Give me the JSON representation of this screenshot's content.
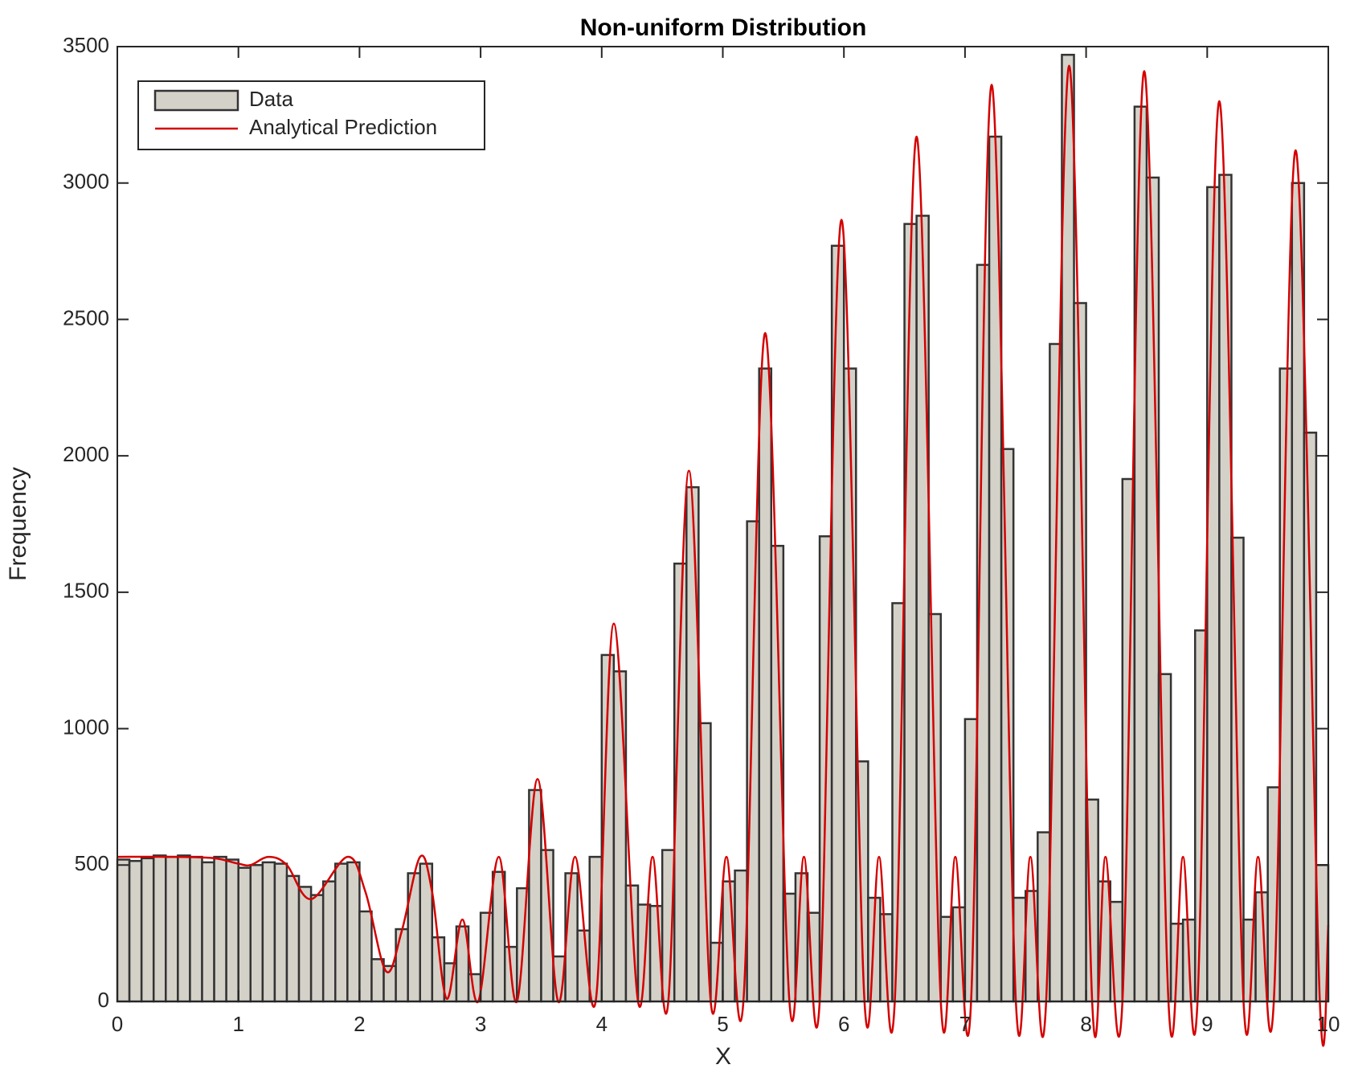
{
  "chart_data": {
    "type": "histogram",
    "title": "Non-uniform Distribution",
    "xlabel": "X",
    "ylabel": "Frequency",
    "xlim": [
      0,
      10
    ],
    "ylim": [
      0,
      3500
    ],
    "xticks": [
      0,
      1,
      2,
      3,
      4,
      5,
      6,
      7,
      8,
      9,
      10
    ],
    "yticks": [
      0,
      500,
      1000,
      1500,
      2000,
      2500,
      3000,
      3500
    ],
    "legend": "upper left",
    "bins": [
      0,
      0.1,
      0.2,
      0.3,
      0.4,
      0.5,
      0.6,
      0.7,
      0.8,
      0.9,
      1,
      1.1,
      1.2,
      1.3,
      1.4,
      1.5,
      1.6,
      1.7,
      1.8,
      1.9,
      2,
      2.1,
      2.2,
      2.3,
      2.4,
      2.5,
      2.6,
      2.7,
      2.8,
      2.9,
      3,
      3.1,
      3.2,
      3.3,
      3.4,
      3.5,
      3.6,
      3.7,
      3.8,
      3.9,
      4,
      4.1,
      4.2,
      4.3,
      4.4,
      4.5,
      4.6,
      4.7,
      4.8,
      4.9,
      5,
      5.1,
      5.2,
      5.3,
      5.4,
      5.5,
      5.6,
      5.7,
      5.8,
      5.9,
      6,
      6.1,
      6.2,
      6.3,
      6.4,
      6.5,
      6.6,
      6.7,
      6.8,
      6.9,
      7,
      7.1,
      7.2,
      7.3,
      7.4,
      7.5,
      7.6,
      7.7,
      7.8,
      7.9,
      8,
      8.1,
      8.2,
      8.3,
      8.4,
      8.5,
      8.6,
      8.7,
      8.8,
      8.9,
      9,
      9.1,
      9.2,
      9.3,
      9.4,
      9.5,
      9.6,
      9.7,
      9.8,
      9.9,
      10
    ],
    "series": [
      {
        "name": "Data",
        "color": "#d4d1c9",
        "edgecolor": "#333333",
        "values": [
          520,
          515,
          525,
          535,
          530,
          535,
          530,
          510,
          530,
          520,
          490,
          500,
          510,
          505,
          460,
          420,
          390,
          440,
          505,
          510,
          330,
          155,
          130,
          265,
          470,
          505,
          235,
          140,
          275,
          100,
          325,
          475,
          200,
          415,
          775,
          555,
          165,
          470,
          260,
          530,
          1270,
          1210,
          425,
          355,
          350,
          555,
          1605,
          1885,
          1020,
          215,
          440,
          480,
          1760,
          2320,
          1670,
          395,
          470,
          325,
          1705,
          2770,
          2320,
          880,
          380,
          320,
          1460,
          2850,
          2880,
          1420,
          310,
          345,
          1035,
          2700,
          3170,
          2025,
          380,
          405,
          620,
          2410,
          3470,
          2560,
          740,
          440,
          365,
          1915,
          3280,
          3020,
          1200,
          285,
          300,
          1360,
          2985,
          3030,
          1700,
          300,
          400,
          785,
          2320,
          3000,
          2085,
          500
        ]
      }
    ],
    "lines": [
      {
        "name": "Analytical Prediction",
        "color": "#d40000",
        "x": [
          0,
          0.5,
          0.8,
          1.0,
          1.1,
          1.25,
          1.4,
          1.6,
          1.9,
          2.05,
          2.22,
          2.35,
          2.5,
          2.6,
          2.72,
          2.85,
          2.98,
          3.15,
          3.3,
          3.47,
          3.64,
          3.78,
          3.95,
          4.1,
          4.3,
          4.42,
          4.55,
          4.72,
          4.9,
          5.03,
          5.17,
          5.35,
          5.55,
          5.67,
          5.8,
          5.98,
          6.17,
          6.29,
          6.42,
          6.6,
          6.8,
          6.92,
          7.05,
          7.22,
          7.42,
          7.54,
          7.67,
          7.86,
          8.05,
          8.16,
          8.3,
          8.48,
          8.68,
          8.8,
          8.92,
          9.1,
          9.3,
          9.42,
          9.55,
          9.73,
          9.93,
          10
        ],
        "y": [
          530,
          530,
          525,
          505,
          500,
          530,
          500,
          375,
          530,
          400,
          110,
          260,
          530,
          400,
          10,
          300,
          0,
          530,
          0,
          815,
          0,
          530,
          0,
          1385,
          0,
          530,
          0,
          1945,
          0,
          530,
          0,
          2450,
          0,
          530,
          0,
          2865,
          0,
          530,
          0,
          3170,
          0,
          530,
          0,
          3360,
          0,
          530,
          0,
          3430,
          0,
          530,
          0,
          3410,
          0,
          530,
          0,
          3300,
          0,
          530,
          0,
          3120,
          0,
          280
        ]
      }
    ]
  }
}
